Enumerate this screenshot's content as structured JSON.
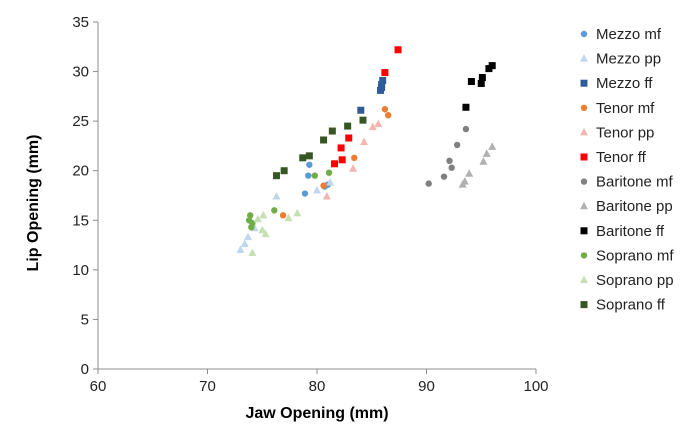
{
  "chart_data": {
    "type": "scatter",
    "title": "",
    "xlabel": "Jaw Opening (mm)",
    "ylabel": "Lip Opening (mm)",
    "xlim": [
      60,
      100
    ],
    "ylim": [
      0,
      35
    ],
    "xticks": [
      60,
      70,
      80,
      90,
      100
    ],
    "yticks": [
      0,
      5,
      10,
      15,
      20,
      25,
      30,
      35
    ],
    "grid": false,
    "legend_position": "right",
    "series": [
      {
        "name": "Mezzo mf",
        "marker": "circle",
        "color": "#5b9bd5",
        "points": [
          [
            78.9,
            17.7
          ],
          [
            79.2,
            19.5
          ],
          [
            79.3,
            20.6
          ],
          [
            80.7,
            18.4
          ],
          [
            81.0,
            18.6
          ]
        ]
      },
      {
        "name": "Mezzo pp",
        "marker": "triangle",
        "color": "#bdd7ee",
        "points": [
          [
            73.0,
            12.0
          ],
          [
            73.4,
            12.6
          ],
          [
            73.7,
            13.3
          ],
          [
            74.3,
            14.2
          ],
          [
            76.3,
            17.4
          ],
          [
            80.0,
            18.0
          ],
          [
            81.2,
            18.8
          ]
        ]
      },
      {
        "name": "Mezzo ff",
        "marker": "square",
        "color": "#2e5c99",
        "points": [
          [
            84.0,
            26.1
          ],
          [
            85.8,
            28.1
          ],
          [
            85.9,
            28.4
          ],
          [
            85.9,
            28.7
          ],
          [
            86.0,
            29.1
          ]
        ]
      },
      {
        "name": "Tenor mf",
        "marker": "circle",
        "color": "#ed7d31",
        "points": [
          [
            76.9,
            15.5
          ],
          [
            80.6,
            18.5
          ],
          [
            83.4,
            21.3
          ],
          [
            86.2,
            26.2
          ],
          [
            86.5,
            25.6
          ]
        ]
      },
      {
        "name": "Tenor pp",
        "marker": "triangle",
        "color": "#f4b6b1",
        "points": [
          [
            80.9,
            17.4
          ],
          [
            83.3,
            20.2
          ],
          [
            84.3,
            22.9
          ],
          [
            85.1,
            24.4
          ],
          [
            85.6,
            24.7
          ]
        ]
      },
      {
        "name": "Tenor ff",
        "marker": "square",
        "color": "#ff0000",
        "points": [
          [
            81.6,
            20.7
          ],
          [
            82.2,
            22.3
          ],
          [
            82.3,
            21.1
          ],
          [
            82.9,
            23.3
          ],
          [
            86.2,
            29.9
          ],
          [
            87.4,
            32.2
          ]
        ]
      },
      {
        "name": "Baritone mf",
        "marker": "circle",
        "color": "#808080",
        "points": [
          [
            90.2,
            18.7
          ],
          [
            91.6,
            19.4
          ],
          [
            92.1,
            21.0
          ],
          [
            92.3,
            20.3
          ],
          [
            92.8,
            22.6
          ],
          [
            93.6,
            24.2
          ]
        ]
      },
      {
        "name": "Baritone pp",
        "marker": "triangle",
        "color": "#b0b0b0",
        "points": [
          [
            93.3,
            18.6
          ],
          [
            93.5,
            18.9
          ],
          [
            93.9,
            19.7
          ],
          [
            95.2,
            20.9
          ],
          [
            95.5,
            21.7
          ],
          [
            96.0,
            22.4
          ]
        ]
      },
      {
        "name": "Baritone ff",
        "marker": "square",
        "color": "#000000",
        "points": [
          [
            93.6,
            26.4
          ],
          [
            94.1,
            29.0
          ],
          [
            95.0,
            28.8
          ],
          [
            95.1,
            29.4
          ],
          [
            95.7,
            30.3
          ],
          [
            96.0,
            30.6
          ]
        ]
      },
      {
        "name": "Soprano mf",
        "marker": "circle",
        "color": "#70ad47",
        "points": [
          [
            73.8,
            15.0
          ],
          [
            73.9,
            15.5
          ],
          [
            74.0,
            14.3
          ],
          [
            74.1,
            14.7
          ],
          [
            76.1,
            16.0
          ],
          [
            79.8,
            19.5
          ],
          [
            81.1,
            19.8
          ]
        ]
      },
      {
        "name": "Soprano pp",
        "marker": "triangle",
        "color": "#c5e0b4",
        "points": [
          [
            74.1,
            11.7
          ],
          [
            74.6,
            15.1
          ],
          [
            75.0,
            14.0
          ],
          [
            75.1,
            15.5
          ],
          [
            75.3,
            13.6
          ],
          [
            77.4,
            15.2
          ],
          [
            78.2,
            15.7
          ]
        ]
      },
      {
        "name": "Soprano ff",
        "marker": "square",
        "color": "#375623",
        "points": [
          [
            76.3,
            19.5
          ],
          [
            77.0,
            20.0
          ],
          [
            78.7,
            21.3
          ],
          [
            79.3,
            21.5
          ],
          [
            80.6,
            23.1
          ],
          [
            81.4,
            24.0
          ],
          [
            82.8,
            24.5
          ],
          [
            84.2,
            25.1
          ]
        ]
      }
    ]
  }
}
